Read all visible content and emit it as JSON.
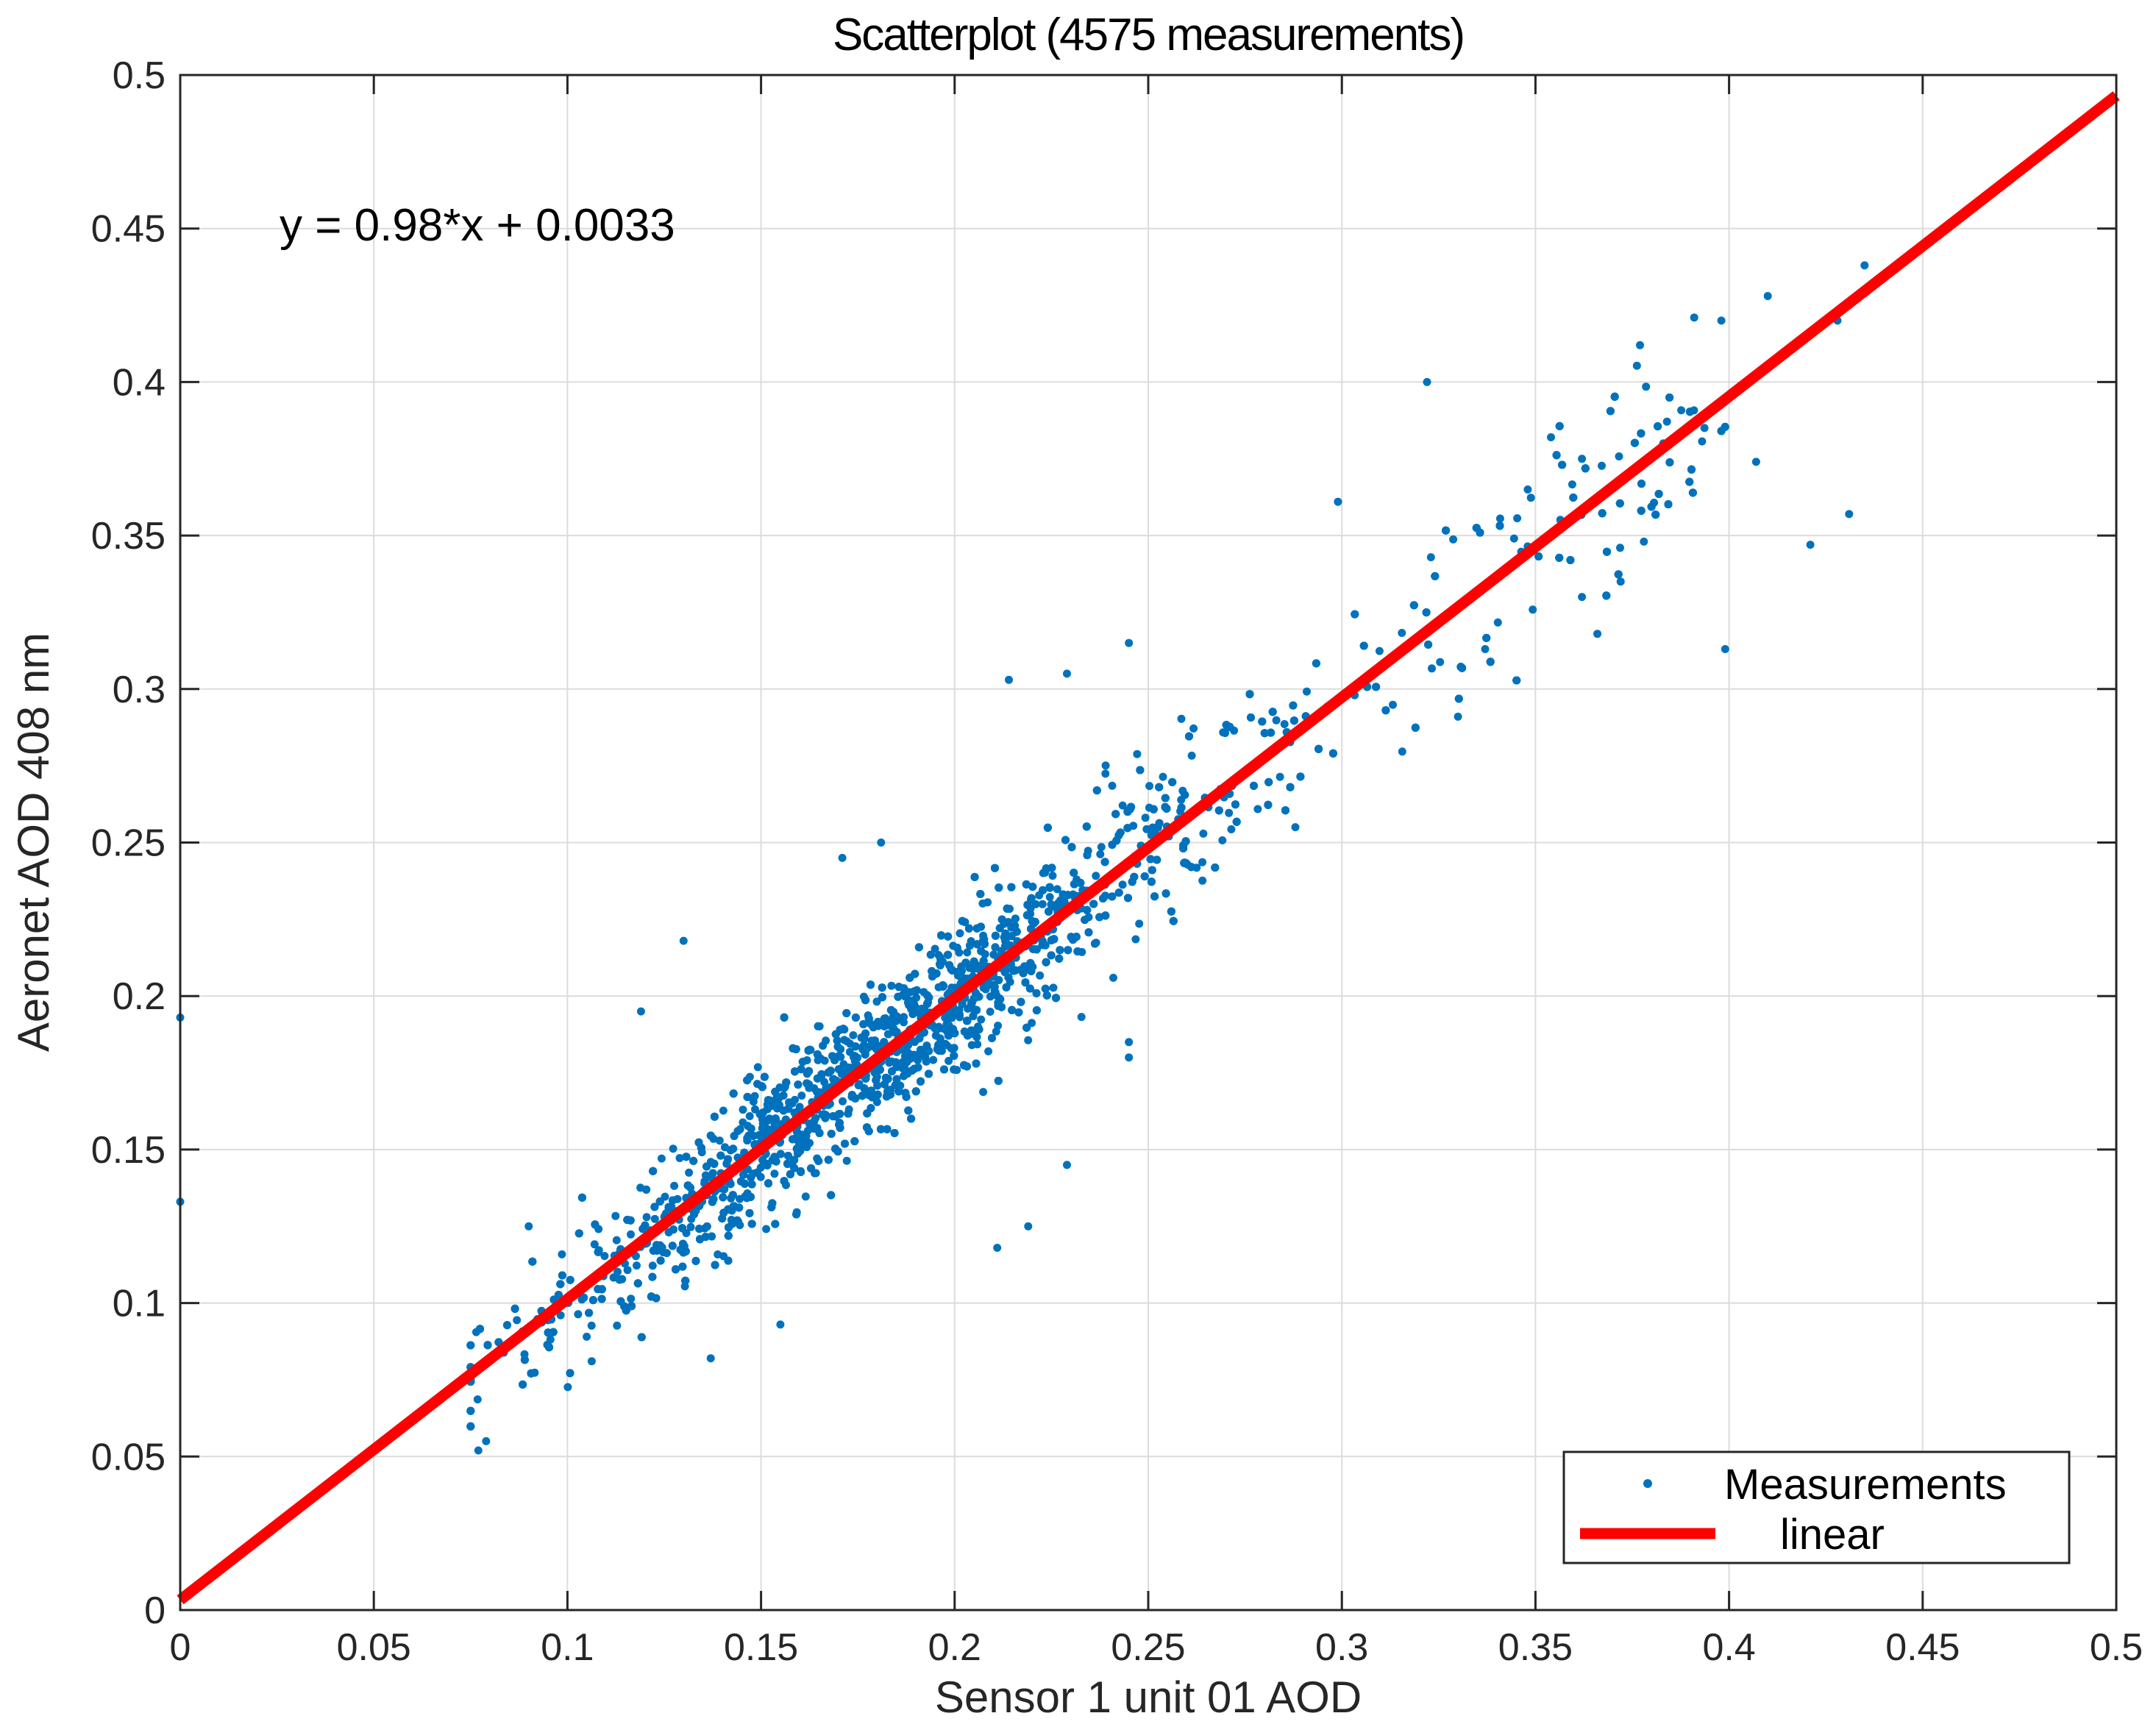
{
  "chart_data": {
    "type": "scatter",
    "title": "Scatterplot (4575 measurements)",
    "xlabel": "Sensor 1 unit 01 AOD",
    "ylabel": "Aeronet AOD 408 nm",
    "xlim": [
      0,
      0.5
    ],
    "ylim": [
      0,
      0.5
    ],
    "grid": true,
    "x_ticks": [
      "0",
      "0.05",
      "0.1",
      "0.15",
      "0.2",
      "0.25",
      "0.3",
      "0.35",
      "0.4",
      "0.45",
      "0.5"
    ],
    "y_ticks": [
      "0",
      "0.05",
      "0.1",
      "0.15",
      "0.2",
      "0.25",
      "0.3",
      "0.35",
      "0.4",
      "0.45",
      "0.5"
    ],
    "annotation": "y = 0.98*x + 0.0033",
    "legend_position": "bottom-right",
    "series": [
      {
        "name": "Measurements",
        "kind": "points",
        "color": "#0072BD",
        "count": 4575,
        "trend": {
          "slope": 0.98,
          "intercept": 0.0033,
          "x_range": [
            0.075,
            0.435
          ],
          "spread_sd": 0.012
        },
        "points": [
          [
            0,
            0.193
          ],
          [
            0,
            0.133
          ],
          [
            0.322,
            0.4
          ],
          [
            0.377,
            0.412
          ],
          [
            0.391,
            0.421
          ],
          [
            0.398,
            0.42
          ],
          [
            0.41,
            0.428
          ],
          [
            0.428,
            0.42
          ],
          [
            0.435,
            0.438
          ],
          [
            0.383,
            0.38
          ],
          [
            0.407,
            0.374
          ],
          [
            0.421,
            0.347
          ],
          [
            0.431,
            0.357
          ],
          [
            0.399,
            0.313
          ],
          [
            0.348,
            0.365
          ],
          [
            0.354,
            0.382
          ],
          [
            0.362,
            0.375
          ],
          [
            0.372,
            0.335
          ],
          [
            0.299,
            0.361
          ],
          [
            0.245,
            0.315
          ],
          [
            0.214,
            0.303
          ],
          [
            0.229,
            0.305
          ],
          [
            0.181,
            0.25
          ],
          [
            0.171,
            0.245
          ],
          [
            0.13,
            0.218
          ],
          [
            0.119,
            0.195
          ],
          [
            0.211,
            0.118
          ],
          [
            0.219,
            0.125
          ],
          [
            0.229,
            0.145
          ],
          [
            0.155,
            0.093
          ],
          [
            0.137,
            0.082
          ],
          [
            0.077,
            0.052
          ],
          [
            0.079,
            0.055
          ],
          [
            0.09,
            0.125
          ],
          [
            0.245,
            0.18
          ],
          [
            0.245,
            0.185
          ],
          [
            0.288,
            0.255
          ],
          [
            0.33,
            0.291
          ],
          [
            0.337,
            0.313
          ],
          [
            0.362,
            0.33
          ],
          [
            0.366,
            0.318
          ],
          [
            0.378,
            0.348
          ]
        ]
      },
      {
        "name": "linear",
        "kind": "line",
        "color": "#FF0000",
        "slope": 0.98,
        "intercept": 0.0033,
        "x_range": [
          0,
          0.5
        ]
      }
    ]
  },
  "legend": {
    "measurements_label": "Measurements",
    "linear_label": "linear"
  }
}
